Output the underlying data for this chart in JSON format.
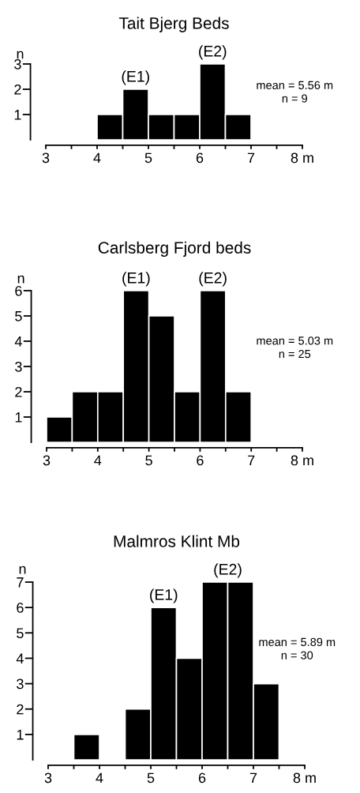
{
  "chart_data": [
    {
      "type": "histogram",
      "title": "Tait Bjerg Beds",
      "ylabel": "n",
      "color": "#000000",
      "bins": [
        4,
        4.5,
        5,
        5.5,
        6,
        6.5,
        7
      ],
      "values": [
        1,
        2,
        1,
        1,
        3,
        1
      ],
      "xlim": [
        3,
        8
      ],
      "xticks": [
        3,
        {
          "value": 3.5,
          "label": null
        },
        4,
        {
          "value": 4.5,
          "label": null
        },
        5,
        {
          "value": 5.5,
          "label": null
        },
        6,
        {
          "value": 6.5,
          "label": null
        },
        7,
        {
          "value": 7.5,
          "label": null
        },
        {
          "value": 8,
          "label": "8 m"
        }
      ],
      "ylim": [
        0,
        3
      ],
      "yticks": [
        1,
        2,
        3
      ],
      "annotations": [
        {
          "text": "(E1)",
          "x": 4.75,
          "y": 2
        },
        {
          "text": "(E2)",
          "x": 6.25,
          "y": 3
        },
        "mean = 5.56 m\nn = 9"
      ]
    },
    {
      "type": "histogram",
      "title": "Carlsberg Fjord beds",
      "ylabel": "n",
      "color": "#000000",
      "bins": [
        3,
        3.5,
        4,
        4.5,
        5,
        5.5,
        6,
        6.5,
        7
      ],
      "values": [
        1,
        2,
        2,
        6,
        5,
        2,
        6,
        2
      ],
      "xlim": [
        3,
        8
      ],
      "xticks": [
        3,
        {
          "value": 3.5,
          "label": null
        },
        4,
        {
          "value": 4.5,
          "label": null
        },
        5,
        {
          "value": 5.5,
          "label": null
        },
        6,
        {
          "value": 6.5,
          "label": null
        },
        7,
        {
          "value": 7.5,
          "label": null
        },
        {
          "value": 8,
          "label": "8 m"
        }
      ],
      "ylim": [
        0,
        6
      ],
      "yticks": [
        1,
        2,
        3,
        4,
        5,
        6
      ],
      "annotations": [
        {
          "text": "(E1)",
          "x": 4.75,
          "y": 6
        },
        {
          "text": "(E2)",
          "x": 6.25,
          "y": 6
        },
        "mean = 5.03 m\nn = 25"
      ]
    },
    {
      "type": "histogram",
      "title": "Malmros Klint Mb",
      "ylabel": "n",
      "color": "#000000",
      "bins": [
        3.5,
        4,
        4.5,
        5,
        5.5,
        6,
        6.5,
        7,
        7.5
      ],
      "values": [
        1,
        0,
        2,
        6,
        4,
        7,
        7,
        3
      ],
      "xlim": [
        3,
        8
      ],
      "xticks": [
        3,
        {
          "value": 3.5,
          "label": null
        },
        4,
        {
          "value": 4.5,
          "label": null
        },
        5,
        {
          "value": 5.5,
          "label": null
        },
        6,
        {
          "value": 6.5,
          "label": null
        },
        7,
        {
          "value": 7.5,
          "label": null
        },
        {
          "value": 8,
          "label": "8 m"
        }
      ],
      "ylim": [
        0,
        7
      ],
      "yticks": [
        1,
        2,
        3,
        4,
        5,
        6,
        7
      ],
      "annotations": [
        {
          "text": "(E1)",
          "x": 5.25,
          "y": 6
        },
        {
          "text": "(E2)",
          "x": 6.5,
          "y": 7
        },
        "mean = 5.89 m\nn = 30"
      ]
    }
  ]
}
